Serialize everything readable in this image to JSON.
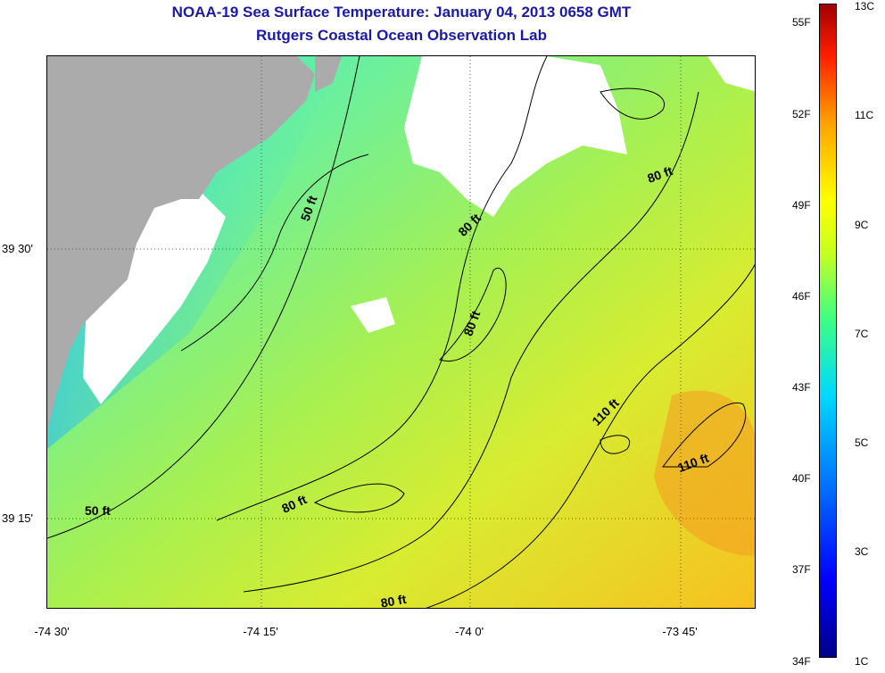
{
  "title": {
    "line1": "NOAA-19 Sea Surface Temperature:  January 04, 2013 0658 GMT",
    "line2": "Rutgers Coastal Ocean Observation Lab"
  },
  "axes": {
    "y_ticks": [
      "39 30'",
      "39 15'"
    ],
    "x_ticks": [
      "-74 30'",
      "-74 15'",
      "-74 0'",
      "-73 45'"
    ]
  },
  "contour_labels": [
    "50 ft",
    "80 ft",
    "80 ft",
    "80 ft",
    "110 ft",
    "110 ft",
    "50 ft",
    "80 ft",
    "80 ft"
  ],
  "colorbar": {
    "fahrenheit": [
      "55F",
      "52F",
      "49F",
      "46F",
      "43F",
      "40F",
      "37F",
      "34F"
    ],
    "celsius": [
      "13C",
      "11C",
      "9C",
      "7C",
      "5C",
      "3C",
      "1C"
    ]
  },
  "colors": {
    "land": "#ababab",
    "cloud": "#ffffff",
    "water_cool": "#2fd8e0",
    "water_mid": "#8ef060",
    "water_warm": "#f0c820",
    "title": "#1a1aa6"
  }
}
